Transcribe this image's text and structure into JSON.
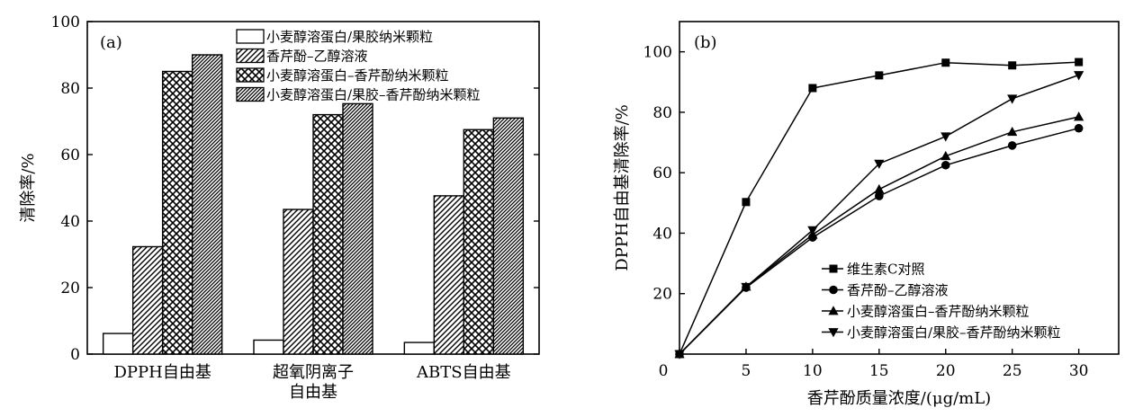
{
  "chart_data": [
    {
      "type": "bar",
      "panel": "(a)",
      "ylabel": "清除率/%",
      "xlabel": "",
      "ylim": [
        0,
        100
      ],
      "yticks": [
        0,
        20,
        40,
        60,
        80,
        100
      ],
      "categories": [
        {
          "lines": [
            "DPPH自由基"
          ]
        },
        {
          "lines": [
            "超氧阴离子",
            "自由基"
          ]
        },
        {
          "lines": [
            "ABTS自由基"
          ]
        }
      ],
      "series": [
        {
          "name": "小麦醇溶蛋白/果胶纳米颗粒",
          "pattern": "none",
          "values": [
            6.2,
            4.2,
            3.5
          ]
        },
        {
          "name": "香芹酚–乙醇溶液",
          "pattern": "diag",
          "values": [
            32.3,
            43.5,
            47.6
          ]
        },
        {
          "name": "小麦醇溶蛋白–香芹酚纳米颗粒",
          "pattern": "cross",
          "values": [
            85.0,
            72.0,
            67.5
          ]
        },
        {
          "name": "小麦醇溶蛋白/果胶–香芹酚纳米颗粒",
          "pattern": "dense",
          "values": [
            90.0,
            75.3,
            71.0
          ]
        }
      ],
      "legend_position": "top-right"
    },
    {
      "type": "line",
      "panel": "(b)",
      "xlabel": "香芹酚质量浓度/(μg/mL)",
      "ylabel": "DPPH自由基清除率/%",
      "xlim": [
        0,
        33
      ],
      "ylim": [
        0,
        110
      ],
      "xticks": [
        0,
        5,
        10,
        15,
        20,
        25,
        30
      ],
      "yticks": [
        20,
        40,
        60,
        80,
        100
      ],
      "x": [
        0,
        5,
        10,
        15,
        20,
        25,
        30
      ],
      "series": [
        {
          "name": "维生素C对照",
          "marker": "square",
          "values": [
            0,
            50.3,
            88.0,
            92.2,
            96.4,
            95.5,
            96.6
          ]
        },
        {
          "name": "香芹酚–乙醇溶液",
          "marker": "circle",
          "values": [
            0,
            22.0,
            38.6,
            52.3,
            62.5,
            69.0,
            74.7
          ]
        },
        {
          "name": "小麦醇溶蛋白–香芹酚纳米颗粒",
          "marker": "triangle-up",
          "values": [
            0,
            22.3,
            39.5,
            54.5,
            65.5,
            73.5,
            78.5
          ]
        },
        {
          "name": "小麦醇溶蛋白/果胶–香芹酚纳米颗粒",
          "marker": "triangle-down",
          "values": [
            0,
            22.2,
            41.0,
            63.0,
            72.0,
            84.5,
            92.3
          ]
        }
      ],
      "legend_position": "bottom-right"
    }
  ]
}
